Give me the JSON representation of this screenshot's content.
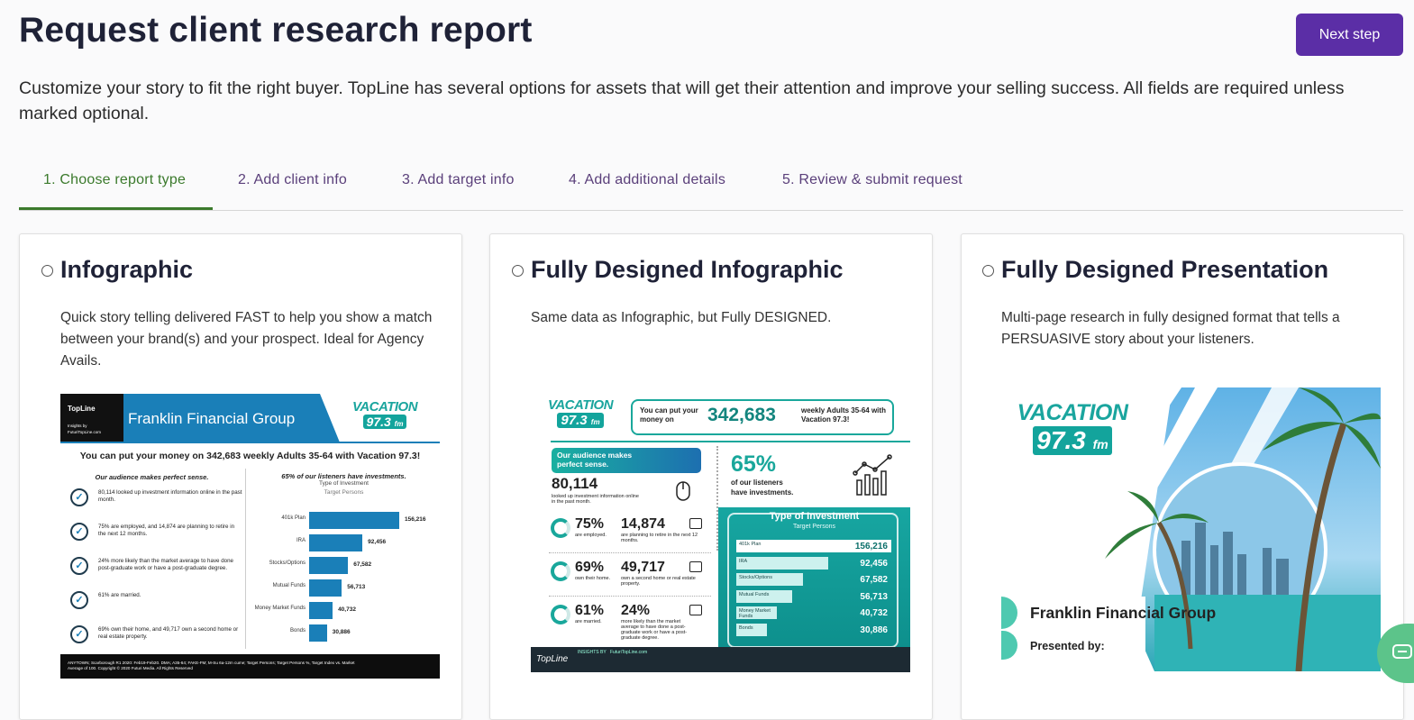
{
  "header": {
    "title": "Request client research report",
    "button": "Next step"
  },
  "description": "Customize your story to fit the right buyer. TopLine has several options for assets that will get their attention and improve your selling success. All fields are required unless marked optional.",
  "tabs": [
    "1. Choose report type",
    "2. Add client info",
    "3. Add target info",
    "4. Add additional details",
    "5. Review & submit request"
  ],
  "brand": {
    "station_name": "VACATION",
    "frequency": "97.3",
    "band": "fm",
    "client": "Franklin Financial Group",
    "topline": "TopLine"
  },
  "investments": {
    "title": "Type of Investment",
    "subtitle": "Target Persons",
    "categories": [
      "401k Plan",
      "IRA",
      "Stocks/Options",
      "Mutual Funds",
      "Money Market Funds",
      "Bonds"
    ],
    "values": [
      156216,
      92456,
      67582,
      56713,
      40732,
      30886
    ],
    "value_labels": [
      "156,216",
      "92,456",
      "67,582",
      "56,713",
      "40,732",
      "30,886"
    ]
  },
  "cards": [
    {
      "title": "Infographic",
      "description": "Quick story telling delivered FAST to help you show a match between your brand(s) and your prospect. Ideal for Agency Avails.",
      "thumbnail": {
        "insights": "Insights by",
        "url": "FuturiTopLine.com",
        "headline": "You can put your money on 342,683 weekly Adults 35-64 with Vacation 97.3!",
        "audience_heading": "Our audience makes perfect sense.",
        "audience_items": [
          "80,114 looked up investment information online in the past month.",
          "75% are employed, and 14,874 are planning to retire in the next 12 months.",
          "24% more likely than the market average to have done post-graduate work or have a post-graduate degree.",
          "61% are married.",
          "69% own their home, and 49,717 own a second home or real estate property."
        ],
        "investments_heading": "65% of our listeners have investments.",
        "footer": "ANYTOWN; Scarborough R1 2020: Feb19-Feb20. DMA; A35-64; FAKE-FM; M-Su 6a-12m cume; Target Persons; Target Persons %, Target Index vs. Market Average of 100. Copyright © 2020 Futuri Media. All Rights Reserved"
      }
    },
    {
      "title": "Fully Designed Infographic",
      "description": "Same data as Infographic, but Fully DESIGNED.",
      "thumbnail": {
        "headline_lead": "You can put your money on",
        "headline_number": "342,683",
        "headline_tail": "weekly Adults 35-64 with Vacation 97.3!",
        "audience_heading": "Our audience makes perfect sense.",
        "searchers": "80,114",
        "searchers_note": "looked up investment information online in the past month.",
        "investors": "65%",
        "investors_note": "of our listeners have investments.",
        "stats": [
          {
            "left": "75%",
            "left_note": "are employed.",
            "right": "14,874",
            "right_note": "are planning to retire in the next 12 months."
          },
          {
            "left": "69%",
            "left_note": "own their home.",
            "right": "49,717",
            "right_note": "own a second home or real estate property."
          },
          {
            "left": "61%",
            "left_note": "are married.",
            "right": "24%",
            "right_note": "more likely than the market average to have done a post-graduate work or have a post-graduate degree."
          }
        ],
        "footer_label": "INSIGHTS BY",
        "footer_url": "FuturiTopLine.com"
      }
    },
    {
      "title": "Fully Designed Presentation",
      "description": "Multi-page research in fully designed format that tells a PERSUASIVE story about your listeners.",
      "thumbnail": {
        "presented_by": "Presented by:"
      }
    }
  ]
}
